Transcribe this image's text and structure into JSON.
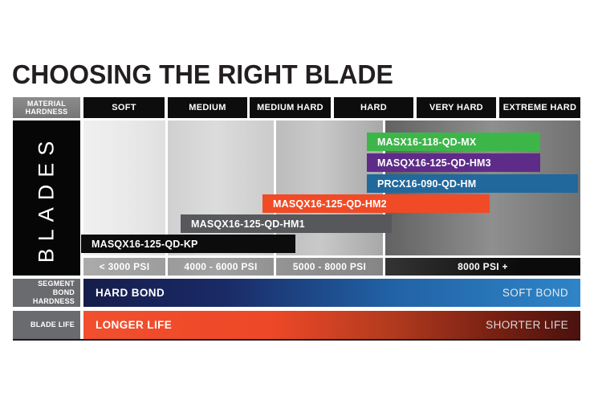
{
  "page_title": "CHOOSING THE RIGHT BLADE",
  "header": {
    "material_hardness_label": "MATERIAL HARDNESS"
  },
  "blades_axis_label": "BLADES",
  "segment_bond": {
    "row_label": "SEGMENT BOND HARDNESS",
    "left_label": "HARD BOND",
    "right_label": "SOFT BOND",
    "gradient": [
      "#161d4b",
      "#2e85c8"
    ]
  },
  "blade_life": {
    "row_label": "BLADE LIFE",
    "left_label": "LONGER LIFE",
    "right_label": "SHORTER LIFE",
    "gradient": [
      "#f14f2e",
      "#4a120e"
    ]
  },
  "chart_data": {
    "type": "bar",
    "title": "CHOOSING THE RIGHT BLADE",
    "categories": [
      "SOFT",
      "MEDIUM",
      "MEDIUM HARD",
      "HARD",
      "VERY HARD",
      "EXTREME HARD"
    ],
    "psi_ranges": [
      "< 3000 PSI",
      "4000 - 6000 PSI",
      "5000 - 8000 PSI",
      "8000 PSI +"
    ],
    "series": [
      {
        "name": "MASX16-118-QD-MX",
        "hardness_range": [
          "HARD",
          "VERY HARD"
        ],
        "color": "#3db649"
      },
      {
        "name": "MASQX16-125-QD-HM3",
        "hardness_range": [
          "HARD",
          "VERY HARD"
        ],
        "color": "#5e2c88"
      },
      {
        "name": "PRCX16-090-QD-HM",
        "hardness_range": [
          "HARD",
          "EXTREME HARD"
        ],
        "color": "#21689c"
      },
      {
        "name": "MASQX16-125-QD-HM2",
        "hardness_range": [
          "MEDIUM HARD",
          "VERY HARD"
        ],
        "color": "#f04b26"
      },
      {
        "name": "MASQX16-125-QD-HM1",
        "hardness_range": [
          "MEDIUM",
          "HARD"
        ],
        "color": "#57585b"
      },
      {
        "name": "MASQX16-125-QD-KP",
        "hardness_range": [
          "SOFT",
          "MEDIUM HARD"
        ],
        "color": "#0c0c0c"
      }
    ],
    "annotations": {
      "segment_bond_axis": [
        "HARD BOND",
        "SOFT BOND"
      ],
      "blade_life_axis": [
        "LONGER LIFE",
        "SHORTER LIFE"
      ]
    },
    "legend_position": "none",
    "grid": false
  }
}
